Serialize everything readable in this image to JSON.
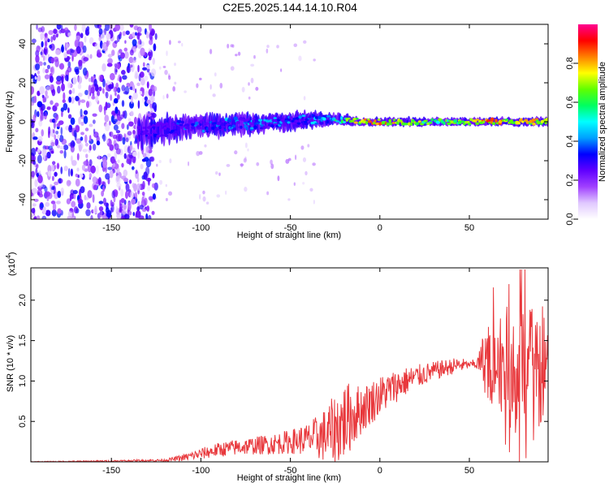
{
  "title": "C2E5.2025.144.14.10.R04",
  "chart_data": [
    {
      "type": "heatmap",
      "xlabel": "Height of straight line (km)",
      "ylabel": "Frequency (Hz)",
      "xlim": [
        -195,
        94
      ],
      "ylim": [
        -50,
        50
      ],
      "xticks": [
        -150,
        -100,
        -50,
        0,
        50
      ],
      "yticks": [
        -40,
        -20,
        0,
        20,
        40
      ],
      "colorbar": {
        "label": "Normalized spectral amplitude",
        "ticks": [
          "0.0",
          "0.2",
          "0.4",
          "0.6",
          "0.8"
        ],
        "range": [
          0,
          1
        ],
        "colors": [
          "#ffffff",
          "#e0c8ff",
          "#a040ff",
          "#6000ff",
          "#0000ff",
          "#00a0ff",
          "#00ffff",
          "#00ff60",
          "#60ff00",
          "#ffff00",
          "#ff8000",
          "#ff0000",
          "#ff0090"
        ]
      },
      "ridge": [
        {
          "x": -135,
          "f": -6,
          "w": 7,
          "amp": 0.3
        },
        {
          "x": -125,
          "f": -4,
          "w": 6,
          "amp": 0.35
        },
        {
          "x": -110,
          "f": -3,
          "w": 6,
          "amp": 0.4
        },
        {
          "x": -100,
          "f": -2,
          "w": 5,
          "amp": 0.42
        },
        {
          "x": -90,
          "f": -2,
          "w": 5,
          "amp": 0.45
        },
        {
          "x": -80,
          "f": -1,
          "w": 5,
          "amp": 0.45
        },
        {
          "x": -70,
          "f": -1,
          "w": 5,
          "amp": 0.45
        },
        {
          "x": -60,
          "f": 0,
          "w": 4,
          "amp": 0.45
        },
        {
          "x": -50,
          "f": 0,
          "w": 4,
          "amp": 0.45
        },
        {
          "x": -40,
          "f": 1,
          "w": 4,
          "amp": 0.48
        },
        {
          "x": -30,
          "f": 1,
          "w": 3,
          "amp": 0.5
        },
        {
          "x": -20,
          "f": 1,
          "w": 3,
          "amp": 0.7
        },
        {
          "x": -10,
          "f": 0,
          "w": 2,
          "amp": 0.85
        },
        {
          "x": 0,
          "f": 0,
          "w": 2,
          "amp": 0.9
        },
        {
          "x": 10,
          "f": 0,
          "w": 2,
          "amp": 0.85
        },
        {
          "x": 20,
          "f": 0,
          "w": 2,
          "amp": 0.8
        },
        {
          "x": 30,
          "f": 0,
          "w": 2,
          "amp": 0.75
        },
        {
          "x": 40,
          "f": 0,
          "w": 2,
          "amp": 0.75
        },
        {
          "x": 50,
          "f": 0,
          "w": 2,
          "amp": 0.8
        },
        {
          "x": 60,
          "f": 0,
          "w": 2,
          "amp": 0.9
        },
        {
          "x": 70,
          "f": 0,
          "w": 2,
          "amp": 0.85
        },
        {
          "x": 80,
          "f": 0,
          "w": 2,
          "amp": 0.85
        },
        {
          "x": 94,
          "f": 0,
          "w": 2,
          "amp": 0.85
        }
      ]
    },
    {
      "type": "line",
      "xlabel": "Height of straight line (km)",
      "ylabel": "SNR (10 * v/v)",
      "y_scale_label": "(x10",
      "y_scale_exp": "4",
      "y_scale_close": ")",
      "xlim": [
        -195,
        94
      ],
      "ylim": [
        0,
        2.4
      ],
      "xticks": [
        -150,
        -100,
        -50,
        0,
        50
      ],
      "yticks": [
        "0.5",
        "1.0",
        "1.5",
        "2.0"
      ],
      "line_color": "#e8383c",
      "envelope": {
        "x": [
          -195,
          -150,
          -120,
          -110,
          -100,
          -90,
          -80,
          -70,
          -60,
          -50,
          -40,
          -30,
          -25,
          -20,
          -10,
          0,
          10,
          20,
          30,
          40,
          45,
          50,
          55,
          60,
          65,
          70,
          75,
          80,
          85,
          90,
          94
        ],
        "mean": [
          0.0,
          0.01,
          0.02,
          0.05,
          0.1,
          0.15,
          0.18,
          0.2,
          0.22,
          0.25,
          0.28,
          0.33,
          0.4,
          0.5,
          0.65,
          0.82,
          0.95,
          1.05,
          1.12,
          1.18,
          1.2,
          1.2,
          1.22,
          1.3,
          1.25,
          1.2,
          1.2,
          1.15,
          1.2,
          1.2,
          1.18
        ],
        "spread": [
          0.005,
          0.01,
          0.015,
          0.04,
          0.07,
          0.09,
          0.1,
          0.11,
          0.13,
          0.15,
          0.2,
          0.35,
          0.45,
          0.5,
          0.3,
          0.25,
          0.2,
          0.15,
          0.12,
          0.1,
          0.1,
          0.03,
          0.1,
          0.55,
          0.6,
          0.7,
          0.85,
          0.85,
          0.7,
          0.5,
          0.3
        ]
      }
    }
  ]
}
